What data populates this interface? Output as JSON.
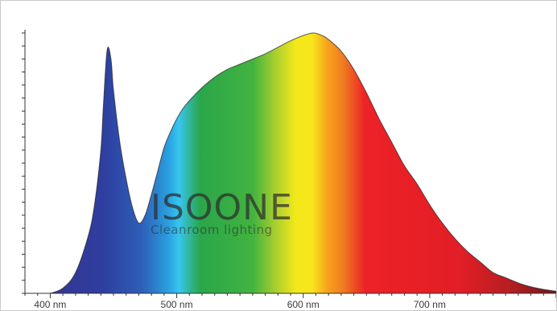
{
  "chart_data": {
    "type": "area",
    "xlabel": "",
    "ylabel": "",
    "xlim": [
      380,
      800
    ],
    "ylim": [
      0,
      1
    ],
    "x_ticks": [
      {
        "value": 400,
        "label": "400 nm"
      },
      {
        "value": 500,
        "label": "500 nm"
      },
      {
        "value": 600,
        "label": "600 nm"
      },
      {
        "value": 700,
        "label": "700 nm"
      }
    ],
    "y_minor_tick_count": 20,
    "grid": false,
    "series": [
      {
        "x": [
          400,
          410,
          420,
          430,
          435,
          440,
          442,
          445,
          448,
          450,
          455,
          460,
          465,
          470,
          475,
          480,
          485,
          490,
          495,
          500,
          505,
          510,
          520,
          530,
          540,
          550,
          560,
          570,
          580,
          590,
          600,
          608,
          615,
          620,
          630,
          640,
          650,
          660,
          670,
          680,
          690,
          700,
          710,
          720,
          730,
          740,
          750,
          760,
          770,
          780,
          790,
          800
        ],
        "y": [
          0.0,
          0.02,
          0.08,
          0.22,
          0.34,
          0.55,
          0.72,
          0.935,
          0.9,
          0.78,
          0.58,
          0.44,
          0.33,
          0.27,
          0.3,
          0.38,
          0.47,
          0.56,
          0.62,
          0.67,
          0.71,
          0.74,
          0.79,
          0.83,
          0.86,
          0.88,
          0.9,
          0.92,
          0.945,
          0.97,
          0.99,
          1.0,
          0.99,
          0.975,
          0.93,
          0.86,
          0.77,
          0.67,
          0.58,
          0.49,
          0.42,
          0.34,
          0.27,
          0.21,
          0.16,
          0.12,
          0.08,
          0.06,
          0.04,
          0.025,
          0.015,
          0.008
        ]
      }
    ]
  },
  "watermark": {
    "title": "ISOONE",
    "subtitle": "Cleanroom lighting"
  }
}
